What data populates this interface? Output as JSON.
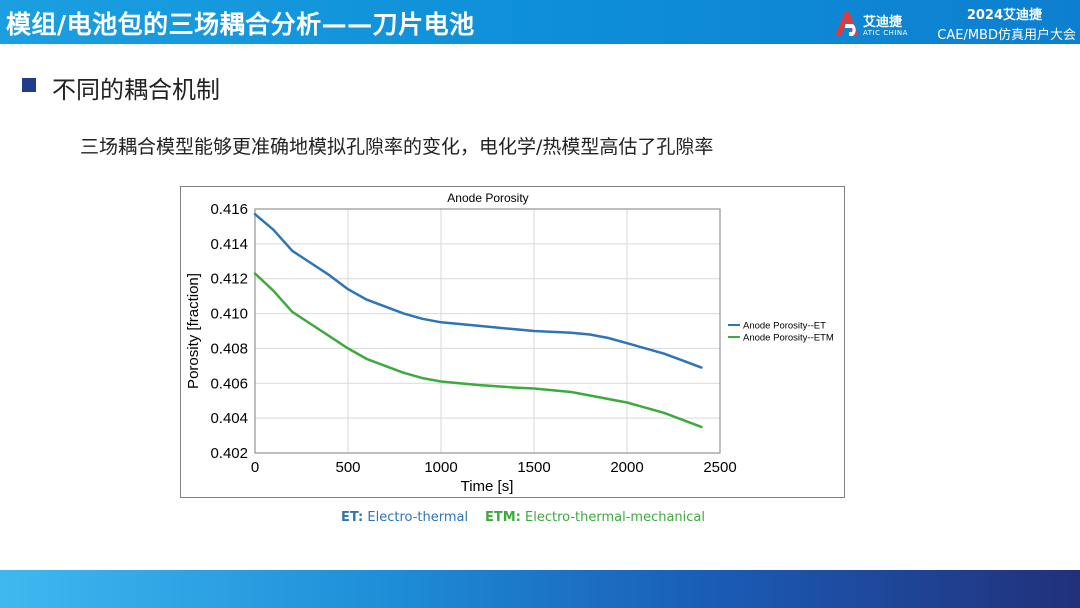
{
  "header": {
    "title": "模组/电池包的三场耦合分析——刀片电池",
    "logo_cn": "艾迪捷",
    "logo_en": "ATIC CHINA",
    "conf_year": "2024艾迪捷",
    "conf_name": "CAE/MBD仿真用户大会"
  },
  "section": {
    "title": "不同的耦合机制"
  },
  "subtitle": "三场耦合模型能够更准确地模拟孔隙率的变化，电化学/热模型高估了孔隙率",
  "notes": {
    "et_key": "ET:",
    "et_text": " Electro-thermal",
    "etm_key": "ETM:",
    "etm_text": " Electro-thermal-mechanical"
  },
  "colors": {
    "header": "#1b9fe0",
    "et": "#2e75b6",
    "etm": "#3daa3d",
    "bullet": "#1f3b8a"
  },
  "chart_data": {
    "type": "line",
    "title": "Anode Porosity",
    "xlabel": "Time [s]",
    "ylabel": "Porosity [fraction]",
    "xlim": [
      0,
      2500
    ],
    "ylim": [
      0.402,
      0.416
    ],
    "xticks": [
      0,
      500,
      1000,
      1500,
      2000,
      2500
    ],
    "yticks": [
      0.402,
      0.404,
      0.406,
      0.408,
      0.41,
      0.412,
      0.414,
      0.416
    ],
    "grid": true,
    "legend_position": "right",
    "series": [
      {
        "name": "Anode Porosity--ET",
        "color": "#2e75b6",
        "x": [
          0,
          100,
          200,
          300,
          400,
          500,
          600,
          700,
          800,
          900,
          1000,
          1200,
          1400,
          1500,
          1600,
          1700,
          1800,
          1900,
          2000,
          2100,
          2200,
          2300,
          2400
        ],
        "y": [
          0.4157,
          0.4148,
          0.4136,
          0.4129,
          0.4122,
          0.4114,
          0.4108,
          0.4104,
          0.41,
          0.4097,
          0.4095,
          0.4093,
          0.4091,
          0.409,
          0.40895,
          0.4089,
          0.4088,
          0.4086,
          0.4083,
          0.408,
          0.4077,
          0.4073,
          0.4069
        ]
      },
      {
        "name": "Anode Porosity--ETM",
        "color": "#3daa3d",
        "x": [
          0,
          100,
          200,
          300,
          400,
          500,
          600,
          700,
          800,
          900,
          1000,
          1200,
          1400,
          1500,
          1600,
          1700,
          1800,
          1900,
          2000,
          2100,
          2200,
          2300,
          2400
        ],
        "y": [
          0.4123,
          0.4113,
          0.4101,
          0.4094,
          0.4087,
          0.408,
          0.4074,
          0.407,
          0.4066,
          0.4063,
          0.4061,
          0.4059,
          0.40575,
          0.4057,
          0.4056,
          0.4055,
          0.4053,
          0.4051,
          0.4049,
          0.4046,
          0.4043,
          0.4039,
          0.4035
        ]
      }
    ]
  }
}
